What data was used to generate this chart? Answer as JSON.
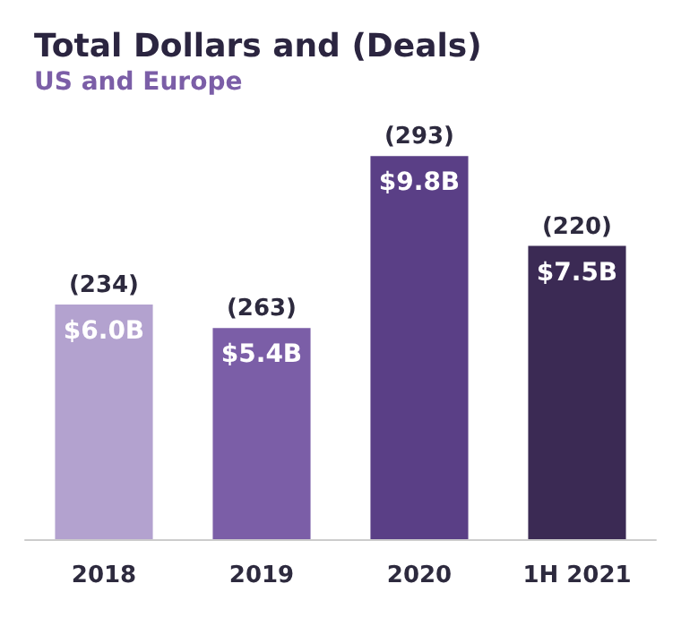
{
  "chart_data": {
    "type": "bar",
    "title": "Total Dollars and (Deals)",
    "subtitle": "US and Europe",
    "categories": [
      "2018",
      "2019",
      "2020",
      "1H 2021"
    ],
    "values": [
      6.0,
      5.4,
      9.8,
      7.5
    ],
    "colors": [
      "#b3a2cf",
      "#7b5ea7",
      "#5a3f86",
      "#3b2a54"
    ],
    "value_labels": [
      "$6.0B",
      "$5.4B",
      "$9.8B",
      "$7.5B"
    ],
    "annotations": [
      {
        "text": "(234)",
        "x": "2018",
        "y": 6.0
      },
      {
        "text": "(263)",
        "x": "2019",
        "y": 5.4
      },
      {
        "text": "(293)",
        "x": "2020",
        "y": 9.8
      },
      {
        "text": "(220)",
        "x": "1H 2021",
        "y": 7.5
      }
    ]
  }
}
